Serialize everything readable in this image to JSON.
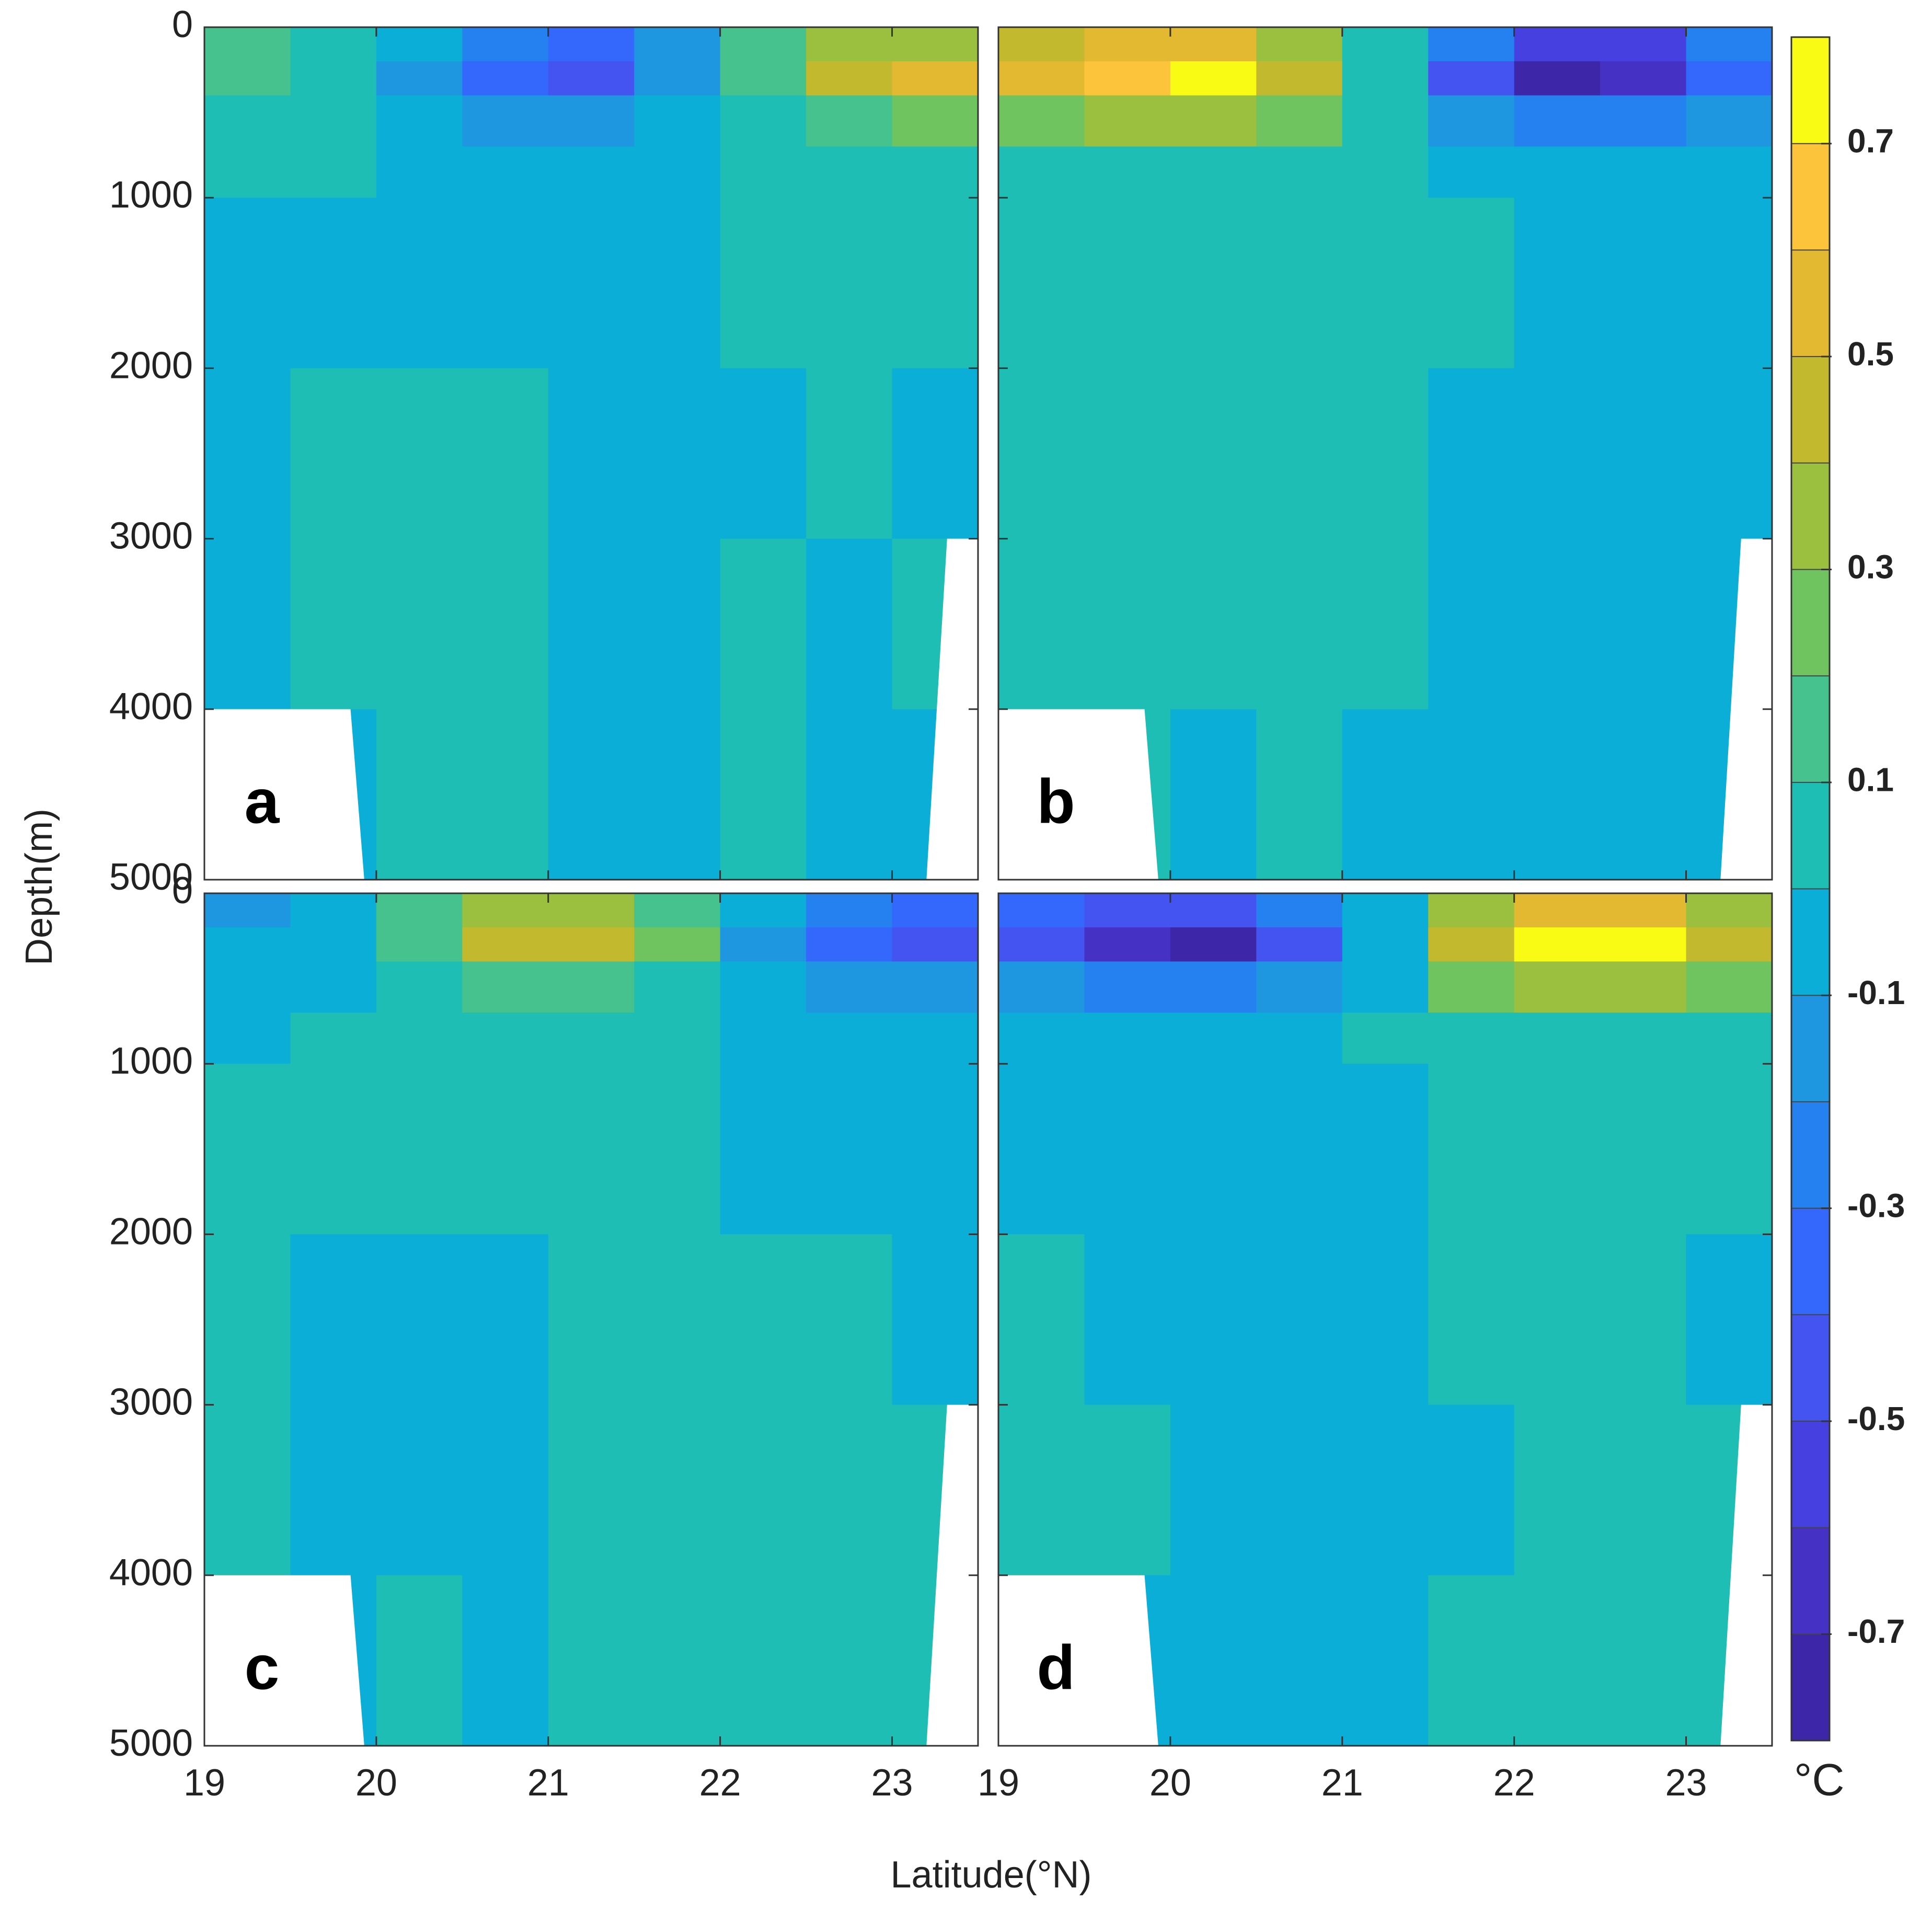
{
  "chart_data": {
    "type": "contour",
    "xlabel": "Latitude(°N)",
    "ylabel": "Depth(m)",
    "xlim": [
      19,
      23.5
    ],
    "ylim": [
      0,
      5000
    ],
    "xticks": [
      19,
      20,
      21,
      22,
      23
    ],
    "yticks": [
      0,
      1000,
      2000,
      3000,
      4000,
      5000
    ],
    "x_edges": [
      19,
      19.5,
      20,
      20.5,
      21,
      21.5,
      22,
      22.5,
      23,
      23.5
    ],
    "depth_edges": [
      0,
      200,
      400,
      700,
      1000,
      2000,
      3000,
      4000,
      5000
    ],
    "colorbar": {
      "label": "°C",
      "clim": [
        -0.8,
        0.8
      ],
      "ticks": [
        0.7,
        0.5,
        0.3,
        0.1,
        -0.1,
        -0.3,
        -0.5,
        -0.7
      ],
      "colors": [
        "#3e26a8",
        "#4631c5",
        "#4740e0",
        "#4354f1",
        "#3468fd",
        "#2581ef",
        "#1f97e0",
        "#0aaed6",
        "#1fbeb4",
        "#45c28d",
        "#6fc460",
        "#9bbf3e",
        "#c2b92e",
        "#e3b932",
        "#fbc43a",
        "#f9fb14"
      ]
    },
    "panels": [
      {
        "label": "a",
        "values": [
          [
            0.15,
            0.05,
            -0.1,
            -0.3,
            -0.35,
            -0.15,
            0.1,
            0.3,
            0.35
          ],
          [
            0.1,
            0.02,
            -0.15,
            -0.4,
            -0.45,
            -0.2,
            0.15,
            0.4,
            0.5
          ],
          [
            0.05,
            0.02,
            -0.05,
            -0.15,
            -0.15,
            -0.08,
            0.05,
            0.15,
            0.2
          ],
          [
            0.02,
            0.02,
            -0.02,
            -0.03,
            -0.03,
            -0.02,
            0.02,
            0.05,
            0.05
          ],
          [
            -0.02,
            -0.02,
            -0.02,
            -0.02,
            -0.02,
            -0.02,
            0.02,
            0.02,
            0.02
          ],
          [
            -0.02,
            0.02,
            0.02,
            0.02,
            -0.02,
            -0.02,
            -0.02,
            0.02,
            -0.02
          ],
          [
            -0.02,
            0.02,
            0.02,
            0.02,
            -0.02,
            -0.02,
            0.02,
            -0.02,
            0.02
          ],
          [
            0.02,
            -0.02,
            0.02,
            0.02,
            -0.02,
            -0.02,
            0.02,
            -0.02,
            -0.02
          ]
        ]
      },
      {
        "label": "b",
        "values": [
          [
            0.4,
            0.5,
            0.5,
            0.3,
            0.05,
            -0.3,
            -0.55,
            -0.55,
            -0.3
          ],
          [
            0.5,
            0.65,
            0.7,
            0.45,
            0.05,
            -0.45,
            -0.75,
            -0.7,
            -0.4
          ],
          [
            0.2,
            0.3,
            0.3,
            0.2,
            0.02,
            -0.2,
            -0.3,
            -0.3,
            -0.2
          ],
          [
            0.05,
            0.05,
            0.05,
            0.03,
            0.02,
            -0.03,
            -0.05,
            -0.05,
            -0.05
          ],
          [
            0.02,
            0.02,
            0.02,
            0.02,
            0.02,
            0.02,
            -0.02,
            -0.02,
            -0.02
          ],
          [
            0.02,
            0.02,
            0.02,
            0.02,
            0.02,
            -0.02,
            -0.02,
            -0.02,
            -0.02
          ],
          [
            0.02,
            0.02,
            0.02,
            0.02,
            0.02,
            -0.02,
            -0.02,
            -0.02,
            -0.02
          ],
          [
            0.02,
            0.02,
            -0.02,
            0.02,
            -0.02,
            -0.02,
            -0.02,
            -0.02,
            -0.02
          ]
        ]
      },
      {
        "label": "c",
        "values": [
          [
            -0.15,
            -0.05,
            0.1,
            0.3,
            0.35,
            0.15,
            -0.1,
            -0.3,
            -0.35
          ],
          [
            -0.1,
            -0.02,
            0.15,
            0.4,
            0.45,
            0.2,
            -0.15,
            -0.4,
            -0.5
          ],
          [
            -0.05,
            -0.02,
            0.05,
            0.15,
            0.15,
            0.08,
            -0.05,
            -0.15,
            -0.2
          ],
          [
            -0.02,
            0.02,
            0.02,
            0.03,
            0.03,
            0.02,
            -0.02,
            -0.05,
            -0.05
          ],
          [
            0.02,
            0.02,
            0.02,
            0.02,
            0.02,
            0.02,
            -0.02,
            -0.02,
            -0.02
          ],
          [
            0.02,
            -0.02,
            -0.02,
            -0.02,
            0.02,
            0.02,
            0.02,
            0.02,
            -0.02
          ],
          [
            0.02,
            -0.02,
            -0.02,
            -0.02,
            0.02,
            0.02,
            0.02,
            0.02,
            0.02
          ],
          [
            0.02,
            -0.02,
            0.02,
            -0.02,
            0.02,
            0.02,
            0.02,
            0.02,
            0.02
          ]
        ]
      },
      {
        "label": "d",
        "values": [
          [
            -0.4,
            -0.5,
            -0.5,
            -0.3,
            -0.05,
            0.3,
            0.55,
            0.55,
            0.3
          ],
          [
            -0.5,
            -0.65,
            -0.75,
            -0.45,
            -0.05,
            0.45,
            0.7,
            0.7,
            0.4
          ],
          [
            -0.2,
            -0.3,
            -0.3,
            -0.2,
            -0.02,
            0.2,
            0.3,
            0.3,
            0.2
          ],
          [
            -0.05,
            -0.05,
            -0.05,
            -0.03,
            0.02,
            0.03,
            0.05,
            0.05,
            0.05
          ],
          [
            -0.02,
            -0.02,
            -0.02,
            -0.02,
            -0.02,
            0.02,
            0.02,
            0.02,
            0.02
          ],
          [
            0.02,
            -0.02,
            -0.02,
            -0.02,
            -0.02,
            0.02,
            0.02,
            0.02,
            -0.02
          ],
          [
            0.02,
            0.02,
            -0.02,
            -0.02,
            -0.02,
            -0.02,
            0.02,
            0.02,
            0.02
          ],
          [
            -0.02,
            -0.02,
            -0.02,
            -0.02,
            -0.02,
            0.02,
            0.02,
            0.02,
            0.02
          ]
        ]
      }
    ]
  }
}
